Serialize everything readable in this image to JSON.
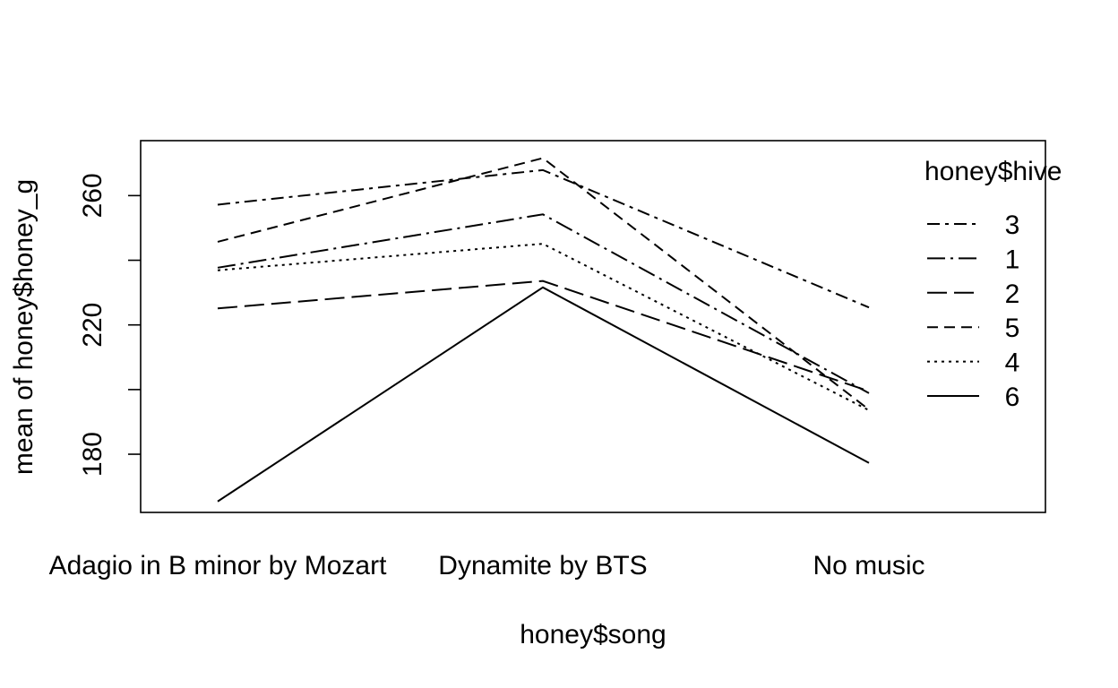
{
  "chart_data": {
    "type": "line",
    "title": "",
    "xlabel": "honey$song",
    "ylabel": "mean of  honey$honey_g",
    "categories": [
      "Adagio in B minor by Mozart",
      "Dynamite by BTS",
      "No music"
    ],
    "ylim": [
      162,
      277
    ],
    "yticks": [
      180,
      200,
      220,
      240,
      260
    ],
    "ytick_labels": [
      "180",
      "",
      "220",
      "",
      "260"
    ],
    "legend_title": "honey$hive",
    "legend_position": "top-right",
    "grid": false,
    "series": [
      {
        "name": "3",
        "values": [
          257.2,
          267.9,
          225.4
        ],
        "dash": "14 6 4 6"
      },
      {
        "name": "1",
        "values": [
          237.7,
          254.2,
          198.9
        ],
        "dash": "20 6 3 6"
      },
      {
        "name": "2",
        "values": [
          225.1,
          233.6,
          199.5
        ],
        "dash": "22 8"
      },
      {
        "name": "5",
        "values": [
          245.7,
          271.6,
          193.8
        ],
        "dash": "12 7"
      },
      {
        "name": "4",
        "values": [
          236.9,
          245.1,
          193.6
        ],
        "dash": "3 5"
      },
      {
        "name": "6",
        "values": [
          165.4,
          231.6,
          177.3
        ],
        "dash": ""
      }
    ]
  }
}
